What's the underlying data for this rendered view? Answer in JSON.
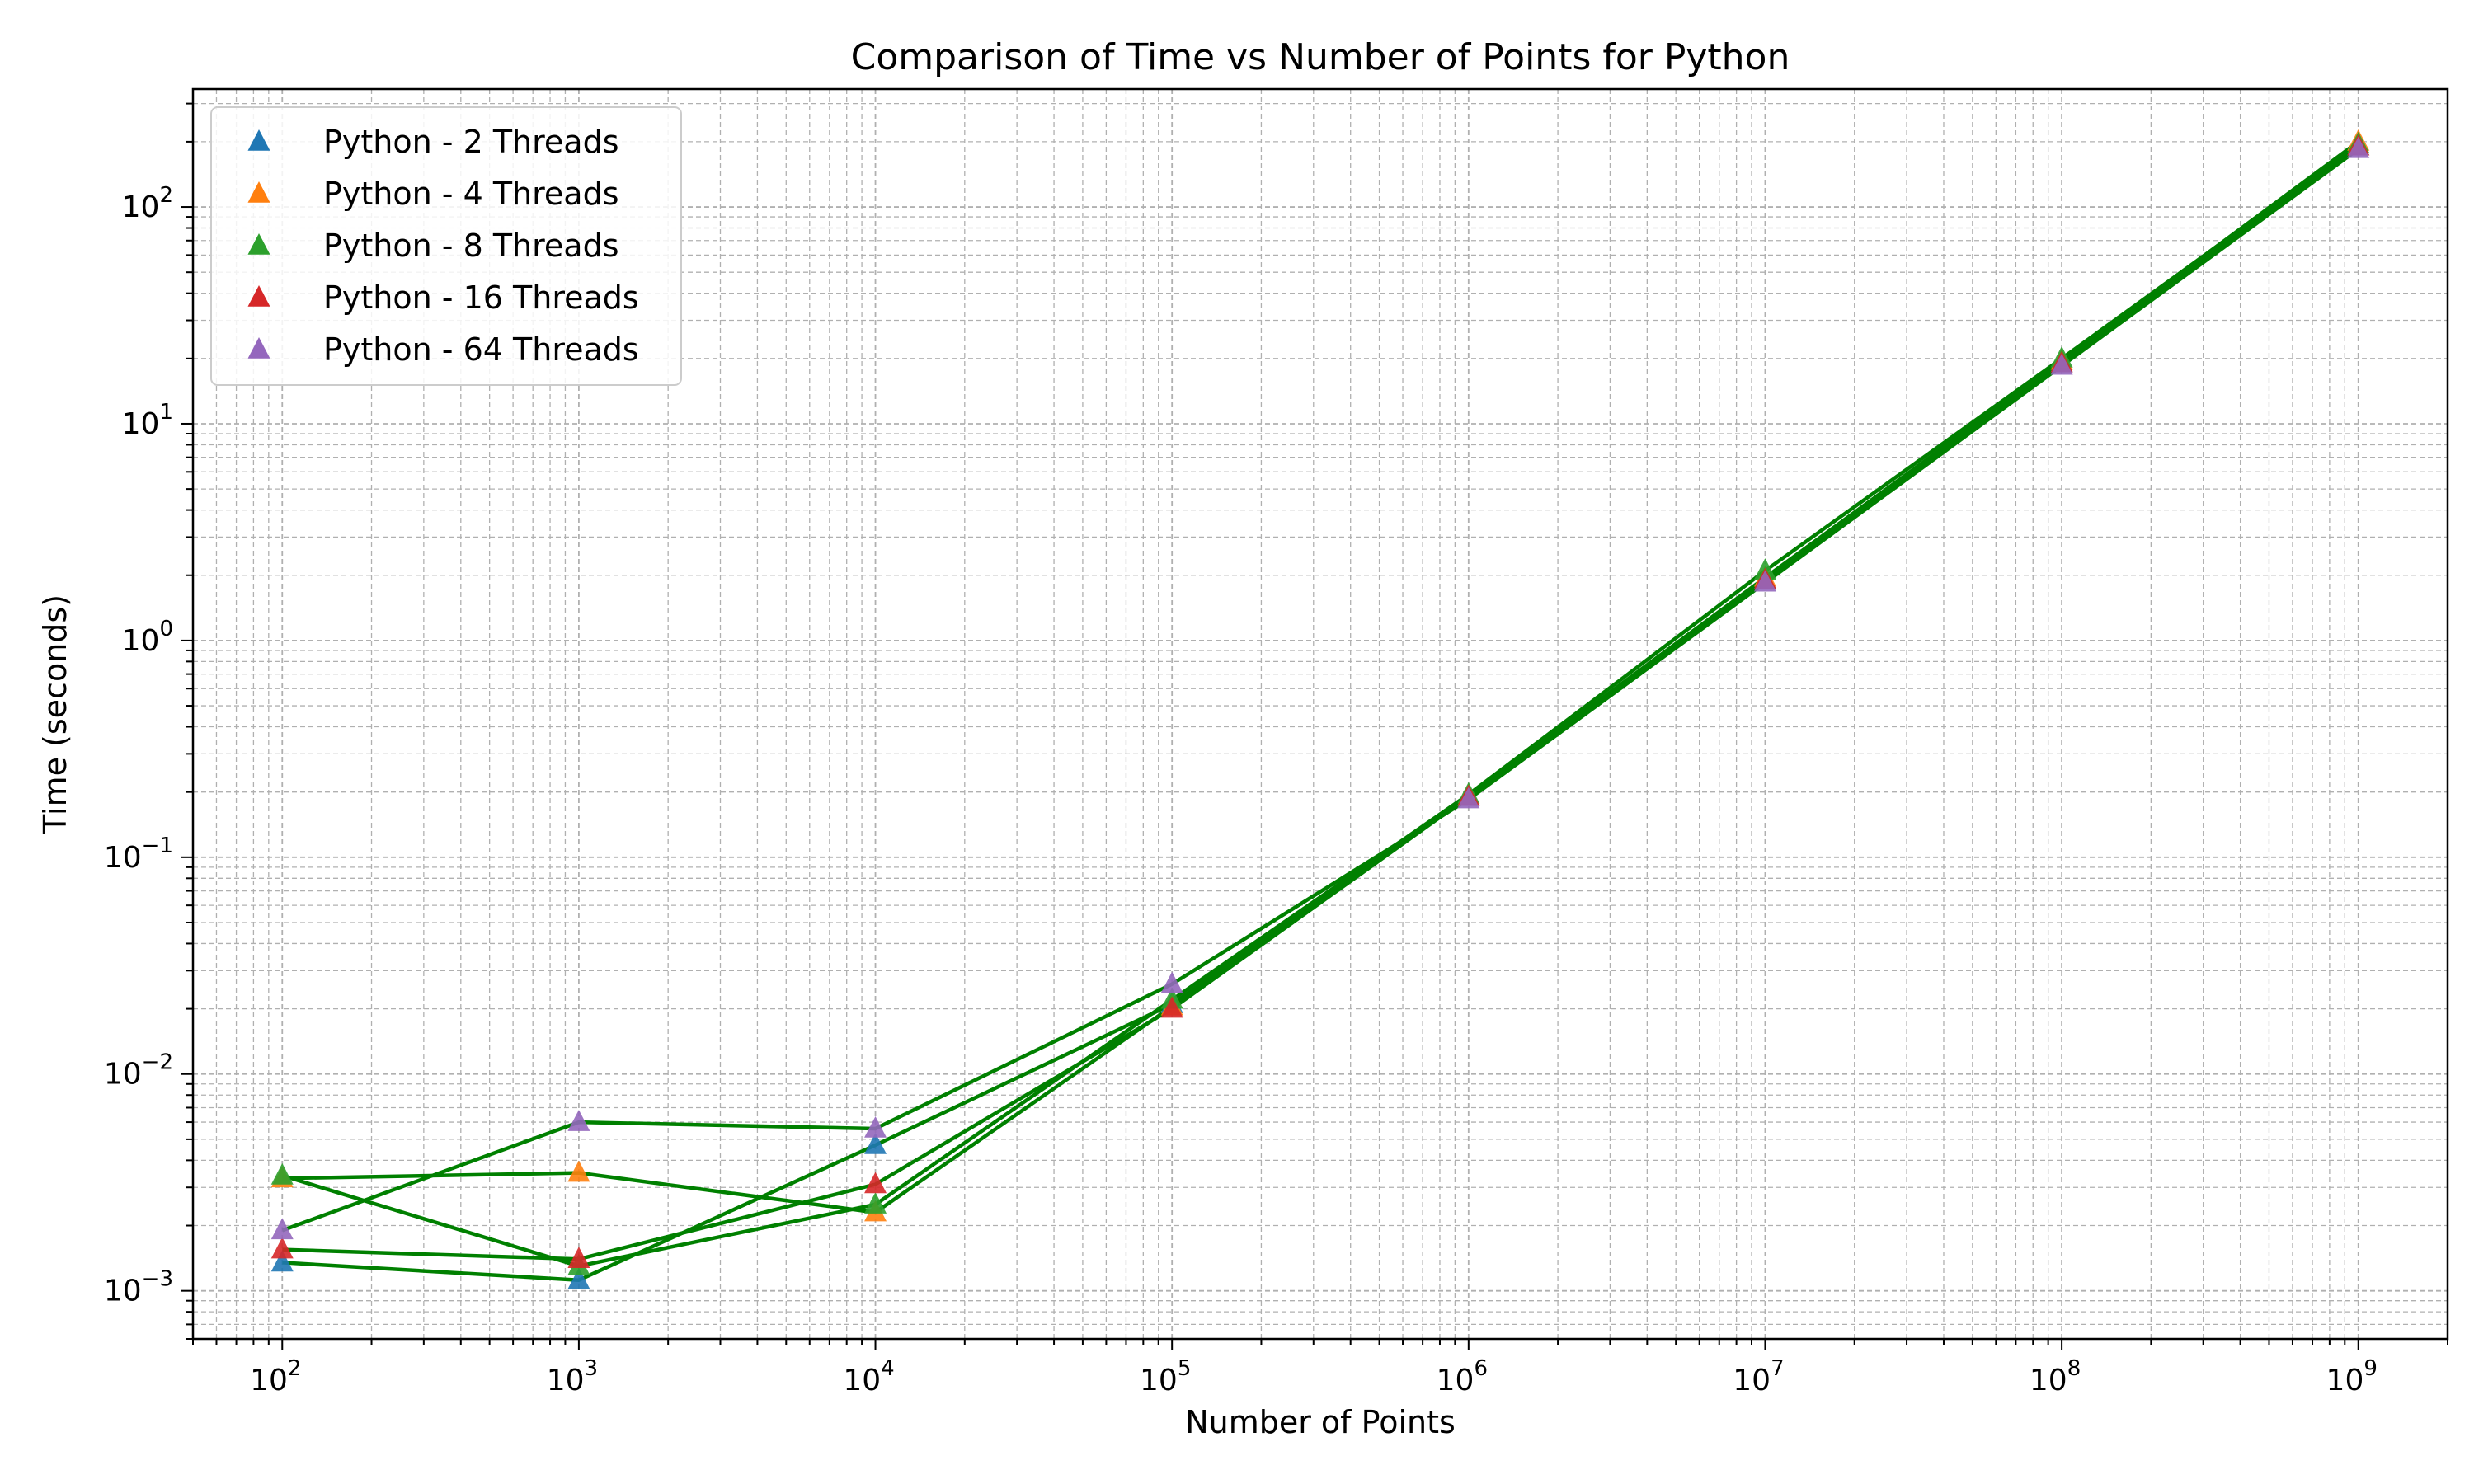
{
  "chart_data": {
    "type": "scatter",
    "title": "Comparison of Time vs Number of Points for Python",
    "xlabel": "Number of Points",
    "ylabel": "Time (seconds)",
    "xscale": "log",
    "yscale": "log",
    "xlim": [
      50,
      2000000000
    ],
    "ylim": [
      0.0006,
      350
    ],
    "grid": true,
    "grid_style": "dashed, major and minor",
    "legend_position": "top-left",
    "line_color": "#008000",
    "marker": "triangle",
    "x": [
      100,
      1000,
      10000,
      100000,
      1000000,
      10000000,
      100000000,
      1000000000
    ],
    "xticks": [
      {
        "value": 100,
        "base": "10",
        "exp": "2"
      },
      {
        "value": 1000,
        "base": "10",
        "exp": "3"
      },
      {
        "value": 10000,
        "base": "10",
        "exp": "4"
      },
      {
        "value": 100000,
        "base": "10",
        "exp": "5"
      },
      {
        "value": 1000000,
        "base": "10",
        "exp": "6"
      },
      {
        "value": 10000000,
        "base": "10",
        "exp": "7"
      },
      {
        "value": 100000000,
        "base": "10",
        "exp": "8"
      },
      {
        "value": 1000000000,
        "base": "10",
        "exp": "9"
      }
    ],
    "yticks": [
      {
        "value": 0.001,
        "base": "10",
        "exp": "−3"
      },
      {
        "value": 0.01,
        "base": "10",
        "exp": "−2"
      },
      {
        "value": 0.1,
        "base": "10",
        "exp": "−1"
      },
      {
        "value": 1,
        "base": "10",
        "exp": "0"
      },
      {
        "value": 10,
        "base": "10",
        "exp": "1"
      },
      {
        "value": 100,
        "base": "10",
        "exp": "2"
      }
    ],
    "series": [
      {
        "name": "Python - 2 Threads",
        "color": "#1f77b4",
        "values": [
          0.00135,
          0.00112,
          0.0047,
          0.021,
          0.19,
          1.9,
          19,
          190
        ]
      },
      {
        "name": "Python - 4 Threads",
        "color": "#ff7f0e",
        "values": [
          0.0033,
          0.0035,
          0.0023,
          0.0205,
          0.19,
          1.95,
          19.5,
          200
        ]
      },
      {
        "name": "Python - 8 Threads",
        "color": "#2ca02c",
        "values": [
          0.0034,
          0.0013,
          0.0025,
          0.022,
          0.195,
          2.1,
          20,
          195
        ]
      },
      {
        "name": "Python - 16 Threads",
        "color": "#d62728",
        "values": [
          0.00155,
          0.0014,
          0.0031,
          0.02,
          0.19,
          1.9,
          19,
          190
        ]
      },
      {
        "name": "Python - 64 Threads",
        "color": "#9467bd",
        "values": [
          0.0019,
          0.006,
          0.0056,
          0.026,
          0.185,
          1.85,
          18.5,
          185
        ]
      }
    ]
  }
}
